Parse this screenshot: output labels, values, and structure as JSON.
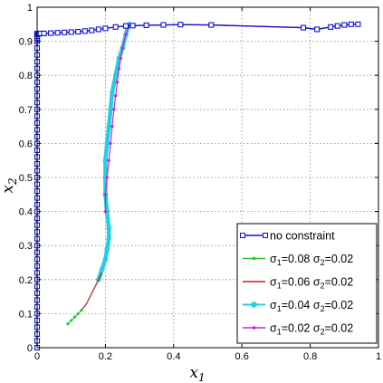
{
  "chart_data": {
    "type": "line",
    "xlabel": "x1",
    "ylabel": "x2",
    "xlabel_main": "x",
    "xlabel_sub": "1",
    "ylabel_main": "x",
    "ylabel_sub": "2",
    "xlim": [
      0,
      1
    ],
    "ylim": [
      0,
      1
    ],
    "xticks": [
      0,
      0.2,
      0.4,
      0.6,
      0.8,
      1
    ],
    "yticks": [
      0,
      0.1,
      0.2,
      0.3,
      0.4,
      0.5,
      0.6,
      0.7,
      0.8,
      0.9,
      1
    ],
    "grid": true,
    "legend_position": "bottom-right",
    "series": [
      {
        "name": "no constraint",
        "legend_label": "no constraint",
        "color": "#1010d0",
        "marker": "square",
        "x": [
          0,
          0,
          0,
          0,
          0,
          0,
          0,
          0,
          0,
          0,
          0,
          0,
          0,
          0,
          0,
          0,
          0,
          0,
          0,
          0,
          0,
          0,
          0,
          0,
          0,
          0,
          0,
          0,
          0,
          0,
          0,
          0,
          0,
          0,
          0,
          0,
          0,
          0,
          0,
          0,
          0,
          0,
          0,
          0,
          0,
          0,
          0,
          0,
          0,
          0,
          0,
          0,
          0.003,
          0.005,
          0.01,
          0.02,
          0.04,
          0.06,
          0.08,
          0.1,
          0.12,
          0.14,
          0.16,
          0.18,
          0.2,
          0.23,
          0.26,
          0.28,
          0.32,
          0.37,
          0.42,
          0.51,
          0.78,
          0.82,
          0.86,
          0.88,
          0.9,
          0.92,
          0.94
        ],
        "y": [
          0,
          0.02,
          0.04,
          0.06,
          0.08,
          0.1,
          0.12,
          0.14,
          0.16,
          0.18,
          0.2,
          0.22,
          0.24,
          0.26,
          0.28,
          0.3,
          0.32,
          0.34,
          0.36,
          0.38,
          0.4,
          0.42,
          0.44,
          0.46,
          0.48,
          0.5,
          0.52,
          0.54,
          0.56,
          0.58,
          0.6,
          0.62,
          0.64,
          0.66,
          0.68,
          0.7,
          0.72,
          0.74,
          0.76,
          0.78,
          0.8,
          0.82,
          0.84,
          0.86,
          0.88,
          0.9,
          0.905,
          0.91,
          0.915,
          0.92,
          0.922,
          0.922,
          0.922,
          0.922,
          0.923,
          0.923,
          0.924,
          0.925,
          0.926,
          0.927,
          0.928,
          0.93,
          0.932,
          0.935,
          0.938,
          0.942,
          0.945,
          0.946,
          0.947,
          0.948,
          0.949,
          0.948,
          0.94,
          0.935,
          0.942,
          0.945,
          0.948,
          0.95,
          0.95
        ]
      },
      {
        "name": "σ1=0.08 σ2=0.02",
        "legend_sigma1_value": "=0.08",
        "legend_sigma2_value": "=0.02",
        "color": "#22cc22",
        "marker": "dot",
        "x": [
          0.09,
          0.1,
          0.11,
          0.12,
          0.13
        ],
        "y": [
          0.07,
          0.08,
          0.09,
          0.1,
          0.11
        ]
      },
      {
        "name": "σ1=0.06 σ2=0.02",
        "legend_sigma1_value": "=0.06",
        "legend_sigma2_value": "=0.02",
        "color": "#c02020",
        "marker": "none",
        "x": [
          0.13,
          0.145,
          0.16,
          0.17,
          0.18,
          0.19
        ],
        "y": [
          0.11,
          0.13,
          0.16,
          0.18,
          0.2,
          0.22
        ]
      },
      {
        "name": "σ1=0.04 σ2=0.02",
        "legend_sigma1_value": "=0.04",
        "legend_sigma2_value": "=0.02",
        "color": "#20d0e0",
        "marker": "circle",
        "x": [
          0.18,
          0.19,
          0.2,
          0.205,
          0.21,
          0.21,
          0.205,
          0.2,
          0.2,
          0.2,
          0.205,
          0.21,
          0.215,
          0.22,
          0.23,
          0.24,
          0.25,
          0.26,
          0.265,
          0.27
        ],
        "y": [
          0.2,
          0.23,
          0.26,
          0.29,
          0.32,
          0.35,
          0.4,
          0.45,
          0.5,
          0.55,
          0.6,
          0.65,
          0.7,
          0.75,
          0.8,
          0.85,
          0.88,
          0.92,
          0.94,
          0.95
        ]
      },
      {
        "name": "σ1=0.02 σ2=0.02",
        "legend_sigma1_value": "=0.02",
        "legend_sigma2_value": "=0.02",
        "color": "#d020d0",
        "marker": "dot",
        "x": [
          0.2,
          0.2,
          0.205,
          0.21,
          0.215,
          0.22,
          0.225,
          0.23,
          0.235,
          0.24,
          0.245,
          0.25,
          0.26,
          0.27,
          0.32,
          0.42,
          0.51,
          0.78,
          0.82,
          0.86,
          0.88,
          0.9,
          0.92,
          0.94
        ],
        "y": [
          0.4,
          0.45,
          0.5,
          0.55,
          0.6,
          0.65,
          0.7,
          0.74,
          0.78,
          0.82,
          0.85,
          0.88,
          0.92,
          0.945,
          0.947,
          0.949,
          0.948,
          0.94,
          0.935,
          0.942,
          0.945,
          0.948,
          0.95,
          0.95
        ]
      }
    ]
  }
}
